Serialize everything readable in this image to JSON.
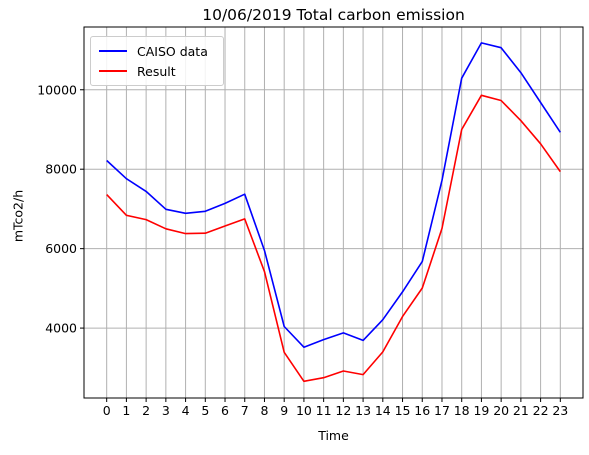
{
  "chart_data": {
    "type": "line",
    "title": "10/06/2019 Total carbon emission",
    "xlabel": "Time",
    "ylabel": "mTco2/h",
    "x": [
      0,
      1,
      2,
      3,
      4,
      5,
      6,
      7,
      8,
      9,
      10,
      11,
      12,
      13,
      14,
      15,
      16,
      17,
      18,
      19,
      20,
      21,
      22,
      23
    ],
    "xlim": [
      -1.15,
      24.15
    ],
    "ylim": [
      2240,
      11580
    ],
    "yticks": [
      4000,
      6000,
      8000,
      10000
    ],
    "grid": true,
    "legend_position": "top-left",
    "series": [
      {
        "name": "CAISO data",
        "color": "#0000ff",
        "values": [
          8220,
          7760,
          7440,
          6990,
          6890,
          6940,
          7140,
          7370,
          5950,
          4040,
          3520,
          3710,
          3880,
          3690,
          4210,
          4910,
          5680,
          7720,
          10290,
          11180,
          11060,
          10430,
          9680,
          8930
        ]
      },
      {
        "name": "Result",
        "color": "#ff0000",
        "values": [
          7360,
          6840,
          6730,
          6500,
          6380,
          6390,
          6570,
          6750,
          5420,
          3390,
          2660,
          2750,
          2920,
          2830,
          3400,
          4290,
          5010,
          6510,
          9000,
          9860,
          9730,
          9220,
          8640,
          7940
        ]
      }
    ]
  }
}
